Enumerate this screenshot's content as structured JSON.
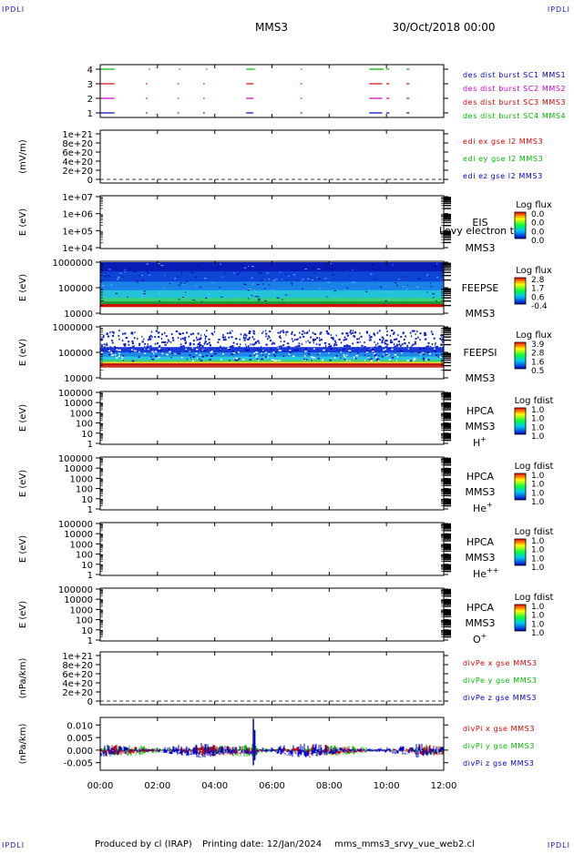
{
  "header": {
    "corner_label": "IPDLI",
    "spacecraft": "MMS3",
    "date_time": "30/Oct/2018 00:00"
  },
  "footer": {
    "produced_by": "Produced by cl (IRAP)",
    "printing_date": "Printing date: 12/Jan/2024",
    "filename": "mms_mms3_srvy_vue_web2.cl"
  },
  "colors": {
    "red": "#dd0000",
    "green": "#00bb00",
    "blue": "#0000cc",
    "magenta": "#cc00cc"
  },
  "chart_data": [
    {
      "type": "line",
      "panel": "burst",
      "ylabel": "",
      "yticks": [
        "4",
        "3",
        "2",
        "1"
      ],
      "legend": [
        {
          "text": "des dist burst SC1 MMS1",
          "color": "#0000cc"
        },
        {
          "text": "des dist burst SC2 MMS2",
          "color": "#cc00cc"
        },
        {
          "text": "des dist burst SC3 MMS3",
          "color": "#dd0000"
        },
        {
          "text": "des dist burst SC4 MMS4",
          "color": "#00bb00"
        }
      ],
      "series": [
        {
          "name": "SC4",
          "level": 4,
          "intervals": [
            [
              0.0,
              0.5
            ],
            [
              1.7,
              1.75
            ],
            [
              2.75,
              2.8
            ],
            [
              3.7,
              3.75
            ],
            [
              5.1,
              5.4
            ],
            [
              7.0,
              7.05
            ],
            [
              9.4,
              9.9
            ],
            [
              10.0,
              10.1
            ],
            [
              10.7,
              10.8
            ]
          ]
        },
        {
          "name": "SC3",
          "level": 3,
          "intervals": [
            [
              0.0,
              0.5
            ],
            [
              1.6,
              1.65
            ],
            [
              2.7,
              2.75
            ],
            [
              3.6,
              3.65
            ],
            [
              5.1,
              5.35
            ],
            [
              7.0,
              7.05
            ],
            [
              9.4,
              9.85
            ],
            [
              10.0,
              10.1
            ],
            [
              10.7,
              10.8
            ]
          ]
        },
        {
          "name": "SC2",
          "level": 2,
          "intervals": [
            [
              0.0,
              0.5
            ],
            [
              1.6,
              1.65
            ],
            [
              2.7,
              2.75
            ],
            [
              3.6,
              3.65
            ],
            [
              5.1,
              5.35
            ],
            [
              7.0,
              7.05
            ],
            [
              9.4,
              9.85
            ],
            [
              10.0,
              10.1
            ],
            [
              10.7,
              10.8
            ]
          ]
        },
        {
          "name": "SC1",
          "level": 1,
          "intervals": [
            [
              0.0,
              0.5
            ],
            [
              1.6,
              1.65
            ],
            [
              2.7,
              2.75
            ],
            [
              3.6,
              3.65
            ],
            [
              5.1,
              5.35
            ],
            [
              7.0,
              7.05
            ],
            [
              9.4,
              9.85
            ],
            [
              10.0,
              10.1
            ],
            [
              10.7,
              10.8
            ]
          ]
        }
      ]
    },
    {
      "type": "line",
      "panel": "edi",
      "ylabel": "(mV/m)",
      "yticks": [
        "1e+21",
        "8e+20",
        "6e+20",
        "4e+20",
        "2e+20",
        "0"
      ],
      "legend": [
        {
          "text": "edi ex gse l2 MMS3",
          "color": "#dd0000"
        },
        {
          "text": "edi ey gse l2 MMS3",
          "color": "#00bb00"
        },
        {
          "text": "edi ez gse l2 MMS3",
          "color": "#0000cc"
        }
      ]
    },
    {
      "type": "heatmap",
      "panel": "eis",
      "ylabel": "E (eV)",
      "yticks": [
        "1e+07",
        "1e+06",
        "1e+05",
        "1e+04"
      ],
      "instrument": "EIS",
      "instrument_extra": "Levy electron to",
      "spacecraft": "MMS3",
      "colorbar_title": "Log flux",
      "colorbar_ticks": [
        "0.0",
        "0.0",
        "0.0",
        "0.0"
      ]
    },
    {
      "type": "heatmap",
      "panel": "feepse",
      "ylabel": "E (eV)",
      "yticks": [
        "1000000",
        "100000",
        "10000"
      ],
      "instrument": "FEEPSE",
      "spacecraft": "MMS3",
      "colorbar_title": "Log flux",
      "colorbar_ticks": [
        "2.8",
        "1.7",
        "0.6",
        "-0.4"
      ]
    },
    {
      "type": "heatmap",
      "panel": "feepsi",
      "ylabel": "E (eV)",
      "yticks": [
        "1000000",
        "100000",
        "10000"
      ],
      "instrument": "FEEPSI",
      "spacecraft": "MMS3",
      "colorbar_title": "Log flux",
      "colorbar_ticks": [
        "3.9",
        "2.8",
        "1.6",
        "0.5"
      ]
    },
    {
      "type": "heatmap",
      "panel": "hpca_h",
      "ylabel": "E (eV)",
      "yticks": [
        "100000",
        "10000",
        "1000",
        "100",
        "10",
        "1"
      ],
      "instrument": "HPCA",
      "spacecraft": "MMS3",
      "species": "H",
      "species_sup": "+",
      "colorbar_title": "Log fdist",
      "colorbar_ticks": [
        "1.0",
        "1.0",
        "1.0",
        "1.0"
      ]
    },
    {
      "type": "heatmap",
      "panel": "hpca_he",
      "ylabel": "E (eV)",
      "yticks": [
        "100000",
        "10000",
        "1000",
        "100",
        "10",
        "1"
      ],
      "instrument": "HPCA",
      "spacecraft": "MMS3",
      "species": "He",
      "species_sup": "+",
      "colorbar_title": "Log fdist",
      "colorbar_ticks": [
        "1.0",
        "1.0",
        "1.0",
        "1.0"
      ]
    },
    {
      "type": "heatmap",
      "panel": "hpca_hepp",
      "ylabel": "E (eV)",
      "yticks": [
        "100000",
        "10000",
        "1000",
        "100",
        "10",
        "1"
      ],
      "instrument": "HPCA",
      "spacecraft": "MMS3",
      "species": "He",
      "species_sup": "++",
      "colorbar_title": "Log fdist",
      "colorbar_ticks": [
        "1.0",
        "1.0",
        "1.0",
        "1.0"
      ]
    },
    {
      "type": "heatmap",
      "panel": "hpca_o",
      "ylabel": "E (eV)",
      "yticks": [
        "100000",
        "10000",
        "1000",
        "100",
        "10",
        "1"
      ],
      "instrument": "HPCA",
      "spacecraft": "MMS3",
      "species": "O",
      "species_sup": "+",
      "colorbar_title": "Log fdist",
      "colorbar_ticks": [
        "1.0",
        "1.0",
        "1.0",
        "1.0"
      ]
    },
    {
      "type": "line",
      "panel": "divpe",
      "ylabel": "(nPa/km)",
      "yticks": [
        "1e+21",
        "8e+20",
        "6e+20",
        "4e+20",
        "2e+20",
        "0"
      ],
      "legend": [
        {
          "text": "divPe x gse MMS3",
          "color": "#dd0000"
        },
        {
          "text": "divPe y gse MMS3",
          "color": "#00bb00"
        },
        {
          "text": "divPe z gse MMS3",
          "color": "#0000cc"
        }
      ]
    },
    {
      "type": "line",
      "panel": "divpi",
      "ylabel": "(nPa/km)",
      "yticks": [
        "0.010",
        "0.005",
        "0.000",
        "-0.005"
      ],
      "ylim": [
        -0.008,
        0.013
      ],
      "legend": [
        {
          "text": "divPi x gse MMS3",
          "color": "#dd0000"
        },
        {
          "text": "divPi y gse MMS3",
          "color": "#00bb00"
        },
        {
          "text": "divPi z gse MMS3",
          "color": "#0000cc"
        }
      ]
    }
  ],
  "x_axis": {
    "ticks": [
      "00:00",
      "02:00",
      "04:00",
      "06:00",
      "08:00",
      "10:00",
      "12:00"
    ],
    "xlim_hours": [
      0,
      12
    ]
  }
}
